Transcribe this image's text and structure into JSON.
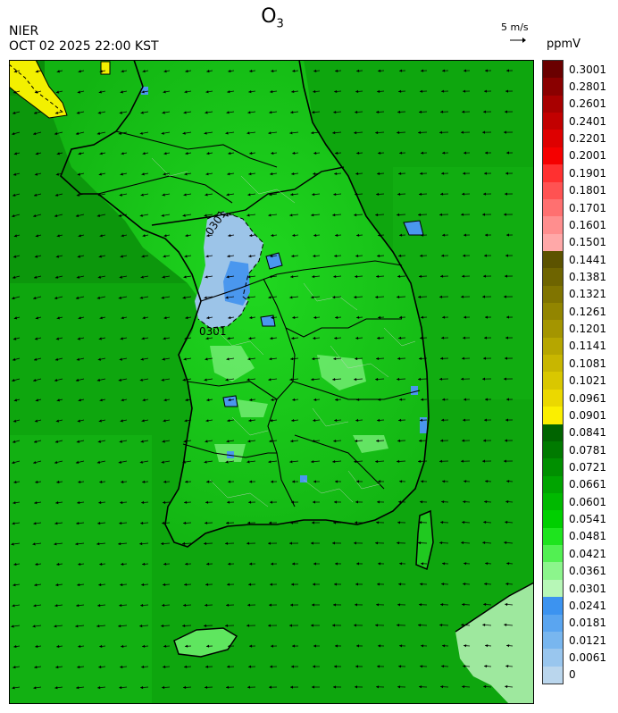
{
  "header": {
    "title_main": "O",
    "title_sub": "3",
    "agency": "NIER",
    "datetime": "OCT 02 2025 22:00 KST"
  },
  "wind_reference": {
    "label": "5 m/s"
  },
  "legend": {
    "unit": "ppmV",
    "levels": [
      {
        "label": "0.3001",
        "color": "#6a0000"
      },
      {
        "label": "0.2801",
        "color": "#8a0000"
      },
      {
        "label": "0.2601",
        "color": "#a80000"
      },
      {
        "label": "0.2401",
        "color": "#c20000"
      },
      {
        "label": "0.2201",
        "color": "#de0000"
      },
      {
        "label": "0.2001",
        "color": "#f50000"
      },
      {
        "label": "0.1901",
        "color": "#ff3030"
      },
      {
        "label": "0.1801",
        "color": "#ff5252"
      },
      {
        "label": "0.1701",
        "color": "#ff7070"
      },
      {
        "label": "0.1601",
        "color": "#ff8e8e"
      },
      {
        "label": "0.1501",
        "color": "#ffa8a8"
      },
      {
        "label": "0.1441",
        "color": "#5c5300"
      },
      {
        "label": "0.1381",
        "color": "#6e6400"
      },
      {
        "label": "0.1321",
        "color": "#807400"
      },
      {
        "label": "0.1261",
        "color": "#928500"
      },
      {
        "label": "0.1201",
        "color": "#a49500"
      },
      {
        "label": "0.1141",
        "color": "#b6a600"
      },
      {
        "label": "0.1081",
        "color": "#c8b600"
      },
      {
        "label": "0.1021",
        "color": "#d9c700"
      },
      {
        "label": "0.0961",
        "color": "#ebd800"
      },
      {
        "label": "0.0901",
        "color": "#fbef00"
      },
      {
        "label": "0.0841",
        "color": "#006400"
      },
      {
        "label": "0.0781",
        "color": "#007a00"
      },
      {
        "label": "0.0721",
        "color": "#008f00"
      },
      {
        "label": "0.0661",
        "color": "#00a400"
      },
      {
        "label": "0.0601",
        "color": "#00b900"
      },
      {
        "label": "0.0541",
        "color": "#00cf00"
      },
      {
        "label": "0.0481",
        "color": "#1ee41e"
      },
      {
        "label": "0.0421",
        "color": "#52f052"
      },
      {
        "label": "0.0361",
        "color": "#8cf58c"
      },
      {
        "label": "0.0301",
        "color": "#b7f7b7"
      },
      {
        "label": "0.0241",
        "color": "#3c93f0"
      },
      {
        "label": "0.0181",
        "color": "#5aa5f0"
      },
      {
        "label": "0.0121",
        "color": "#78b6ef"
      },
      {
        "label": "0.0061",
        "color": "#99c6ee"
      },
      {
        "label": "0",
        "color": "#bad6ed"
      }
    ]
  },
  "map": {
    "contour_labels": [
      "0301",
      "0301"
    ]
  },
  "colors": {
    "low_ozone_blue": "#9cc4e8",
    "high_ozone_yellow": "#f3f000",
    "base_green": "#14c114"
  }
}
